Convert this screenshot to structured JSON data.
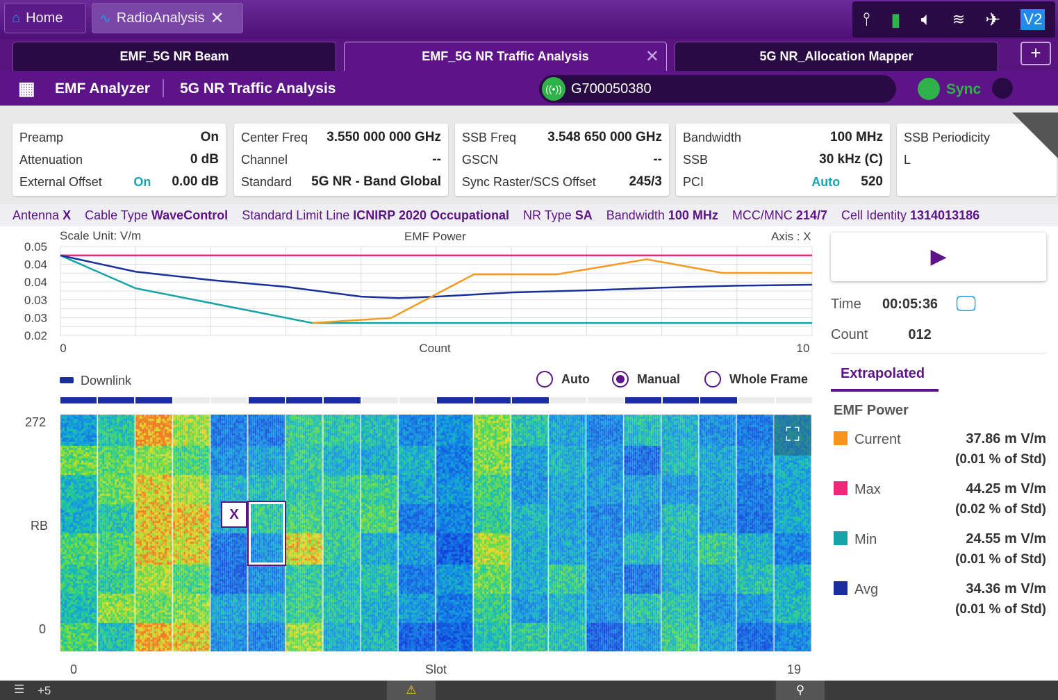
{
  "app_tabs": [
    {
      "label": "Home",
      "icon": "home-icon"
    },
    {
      "label": "RadioAnalysis",
      "icon": "pulse-icon"
    }
  ],
  "system_icons": [
    "probe-icon",
    "battery-charging-icon",
    "speaker-icon",
    "wifi-icon",
    "satellite-sync-icon",
    "vnc-icon"
  ],
  "vnc_label": "V2",
  "doc_tabs": [
    {
      "label": "EMF_5G NR Beam"
    },
    {
      "label": "EMF_5G NR Traffic Analysis",
      "active": true
    },
    {
      "label": "5G NR_Allocation Mapper"
    }
  ],
  "header": {
    "app": "EMF Analyzer",
    "mode": "5G NR Traffic Analysis",
    "device": "G700050380",
    "sync": "Sync"
  },
  "cards": [
    [
      {
        "k": "Preamp",
        "v": "On"
      },
      {
        "k": "Attenuation",
        "v": "0 dB"
      },
      {
        "k": "External Offset",
        "m": "On",
        "v": "0.00 dB"
      }
    ],
    [
      {
        "k": "Center Freq",
        "v": "3.550 000 000 GHz"
      },
      {
        "k": "Channel",
        "v": "--"
      },
      {
        "k": "Standard",
        "v": "5G NR - Band Global"
      }
    ],
    [
      {
        "k": "SSB Freq",
        "v": "3.548 650 000 GHz"
      },
      {
        "k": "GSCN",
        "v": "--"
      },
      {
        "k": "Sync Raster/SCS Offset",
        "v": "245/3"
      }
    ],
    [
      {
        "k": "Bandwidth",
        "v": "100 MHz"
      },
      {
        "k": "SSB",
        "v": "30 kHz (C)"
      },
      {
        "k": "PCI",
        "m": "Auto",
        "v": "520"
      }
    ],
    [
      {
        "k": "SSB Periodicity",
        "v": ""
      },
      {
        "k": "L",
        "v": ""
      }
    ]
  ],
  "strip": [
    {
      "k": "Antenna",
      "v": "X"
    },
    {
      "k": "Cable Type",
      "v": "WaveControl"
    },
    {
      "k": "Standard Limit Line",
      "v": "ICNIRP 2020 Occupational"
    },
    {
      "k": "NR Type",
      "v": "SA"
    },
    {
      "k": "Bandwidth",
      "v": "100 MHz"
    },
    {
      "k": "MCC/MNC",
      "v": "214/7"
    },
    {
      "k": "Cell Identity",
      "v": "1314013186"
    }
  ],
  "chart_data": {
    "type": "line",
    "title": "EMF Power",
    "scale_unit": "Scale Unit: V/m",
    "axis": "Axis : X",
    "xlabel": "Count",
    "xlim": [
      0,
      10
    ],
    "ylim": [
      0.02,
      0.05
    ],
    "yticks": [
      "0.05",
      "0.04",
      "0.04",
      "0.03",
      "0.03",
      "0.02"
    ],
    "xticks": [
      "0",
      "10"
    ],
    "series": [
      {
        "name": "Max",
        "color": "#f0287a",
        "points": [
          [
            0,
            0.047
          ],
          [
            10,
            0.047
          ]
        ]
      },
      {
        "name": "Min",
        "color": "#17a3a8",
        "points": [
          [
            0,
            0.047
          ],
          [
            1,
            0.0359
          ],
          [
            3.35,
            0.0242
          ],
          [
            10,
            0.0242
          ]
        ]
      },
      {
        "name": "Avg",
        "color": "#1a2f9c",
        "points": [
          [
            0,
            0.047
          ],
          [
            1,
            0.0415
          ],
          [
            2,
            0.0387
          ],
          [
            3,
            0.0364
          ],
          [
            4,
            0.0331
          ],
          [
            4.5,
            0.0326
          ],
          [
            5,
            0.0331
          ],
          [
            6,
            0.0345
          ],
          [
            7,
            0.0352
          ],
          [
            8,
            0.0361
          ],
          [
            9,
            0.0368
          ],
          [
            10,
            0.0371
          ]
        ]
      },
      {
        "name": "Current",
        "color": "#f59a1e",
        "points": [
          [
            3.35,
            0.0242
          ],
          [
            4.4,
            0.0259
          ],
          [
            5.5,
            0.0406
          ],
          [
            6.6,
            0.0406
          ],
          [
            7.8,
            0.0457
          ],
          [
            8.8,
            0.0411
          ],
          [
            10,
            0.0411
          ]
        ]
      }
    ]
  },
  "spectrogram": {
    "legend": "Downlink",
    "modes": [
      "Auto",
      "Manual",
      "Whole Frame"
    ],
    "selected_mode": "Manual",
    "ylabel": "RB",
    "ymax": "272",
    "ymin": "0",
    "xlabel": "Slot",
    "xmin": "0",
    "xmax": "19",
    "downlink_slots": [
      0,
      1,
      2,
      5,
      6,
      7,
      10,
      11,
      12,
      15,
      16,
      17
    ],
    "slot_activity": [
      0.55,
      0.6,
      0.85,
      0.8,
      0.3,
      0.4,
      0.7,
      0.45,
      0.55,
      0.3,
      0.3,
      0.65,
      0.4,
      0.5,
      0.3,
      0.35,
      0.5,
      0.45,
      0.35,
      0.4
    ],
    "marker": "X"
  },
  "panel": {
    "time_label": "Time",
    "time": "00:05:36",
    "count_label": "Count",
    "count": "012",
    "tab": "Extrapolated",
    "section": "EMF Power",
    "legend": [
      {
        "name": "Current",
        "color": "#f7941d",
        "value": "37.86 m V/m",
        "pct": "(0.01 % of Std)"
      },
      {
        "name": "Max",
        "color": "#f0287a",
        "value": "44.25 m V/m",
        "pct": "(0.02 % of Std)"
      },
      {
        "name": "Min",
        "color": "#17a3a8",
        "value": "24.55 m V/m",
        "pct": "(0.01 % of Std)"
      },
      {
        "name": "Avg",
        "color": "#1a2f9c",
        "value": "34.36 m V/m",
        "pct": "(0.01 % of Std)"
      }
    ]
  },
  "status": {
    "count": "+5"
  }
}
